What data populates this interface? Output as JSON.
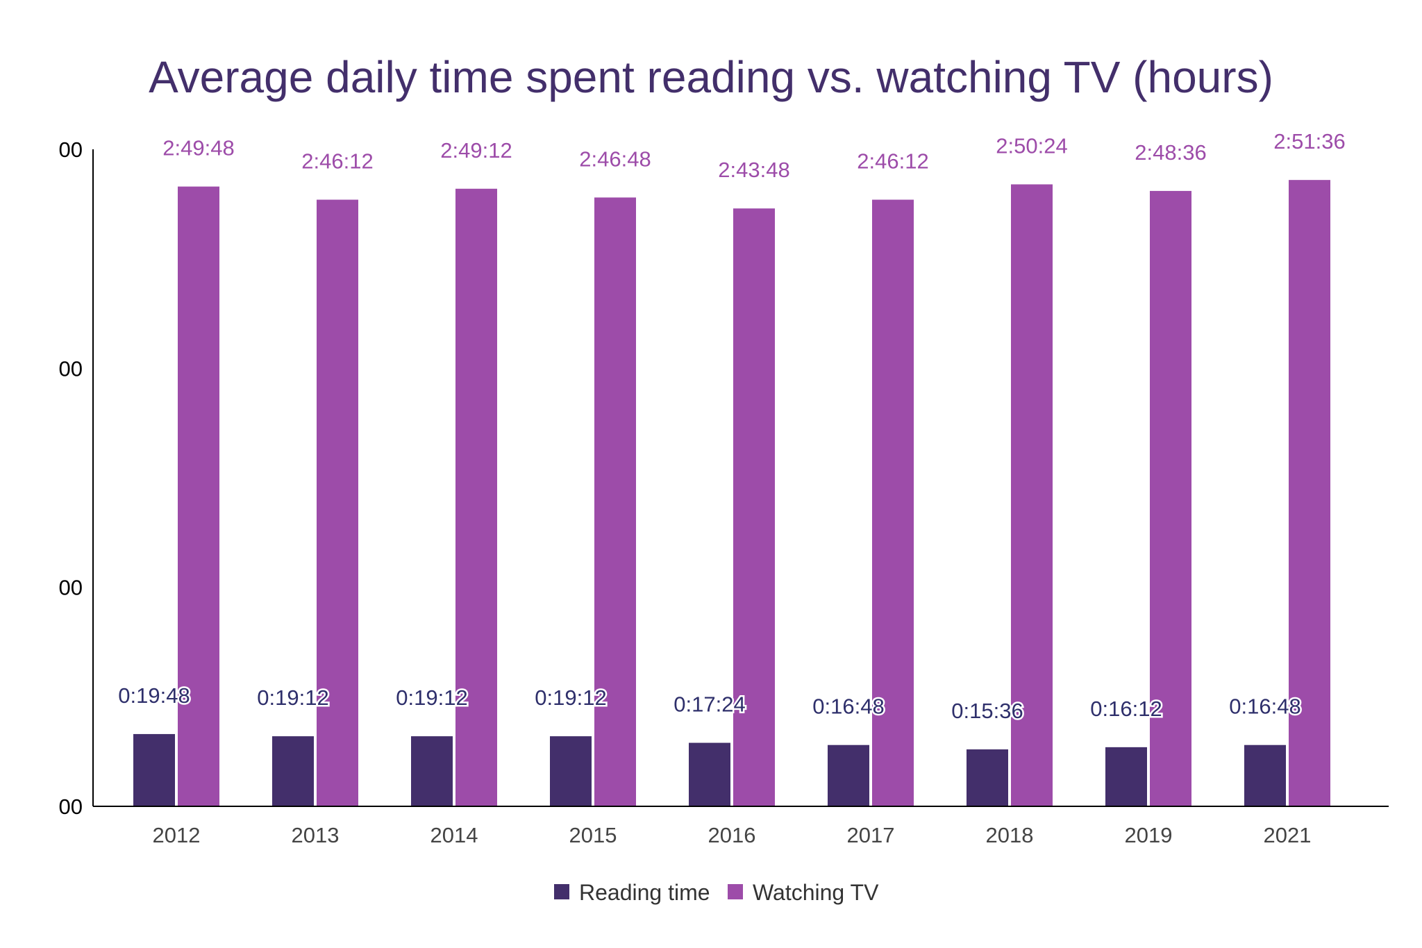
{
  "chart_data": {
    "type": "bar",
    "title": "Average daily time spent reading vs. watching TV (hours)",
    "xlabel": "",
    "ylabel": "",
    "categories": [
      "2012",
      "2013",
      "2014",
      "2015",
      "2016",
      "2017",
      "2018",
      "2019",
      "2021"
    ],
    "series": [
      {
        "name": "Reading time",
        "color": "#432f6b",
        "values": [
          "0:19:48",
          "0:19:12",
          "0:19:12",
          "0:19:12",
          "0:17:24",
          "0:16:48",
          "0:15:36",
          "0:16:12",
          "0:16:48"
        ]
      },
      {
        "name": "Watching TV",
        "color": "#9d4ca9",
        "values": [
          "2:49:48",
          "2:46:12",
          "2:49:12",
          "2:46:48",
          "2:43:48",
          "2:46:12",
          "2:50:24",
          "2:48:36",
          "2:51:36"
        ]
      }
    ],
    "y_ticks": [
      "00",
      "00",
      "00",
      "00"
    ],
    "ylim": [
      "0:00:00",
      "3:00:00"
    ],
    "grid": false,
    "legend_position": "bottom",
    "colors": {
      "title": "#432f6b",
      "axis": "#000000",
      "tick_text": "#000000",
      "x_label_text": "#444444",
      "reading_label": "#2e2f6b",
      "tv_label": "#9d4ca9",
      "legend_text": "#333333"
    }
  }
}
